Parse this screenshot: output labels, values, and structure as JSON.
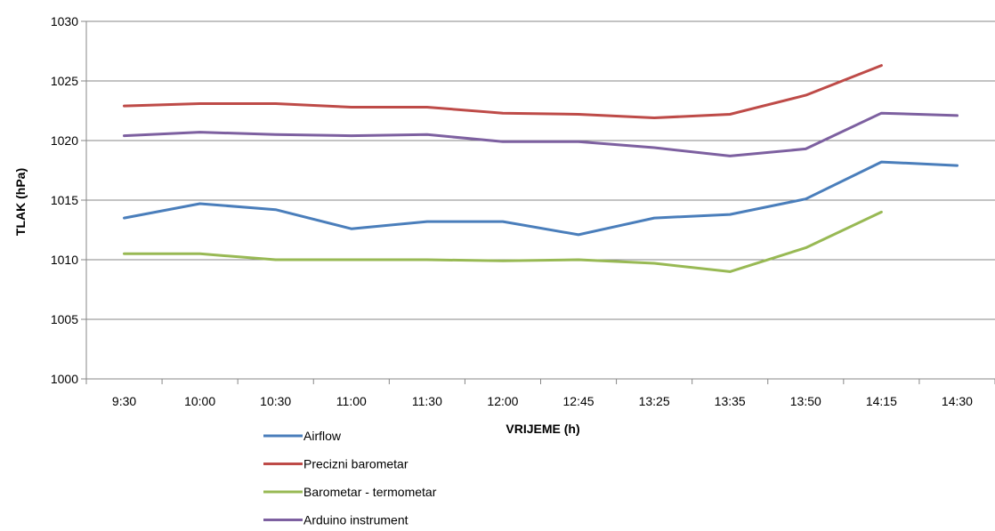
{
  "chart_data": {
    "type": "line",
    "title": "",
    "xlabel": "VRIJEME (h)",
    "ylabel": "TLAK (hPa)",
    "ylim": [
      1000,
      1030
    ],
    "yticks": [
      1000,
      1005,
      1010,
      1015,
      1020,
      1025,
      1030
    ],
    "categories": [
      "9:30",
      "10:00",
      "10:30",
      "11:00",
      "11:30",
      "12:00",
      "12:45",
      "13:25",
      "13:35",
      "13:50",
      "14:15",
      "14:30"
    ],
    "grid": "horizontal",
    "legend_position": "bottom-left",
    "series": [
      {
        "name": "Airflow",
        "color": "#4a7ebb",
        "values": [
          1013.5,
          1014.7,
          1014.2,
          1012.6,
          1013.2,
          1013.2,
          1012.1,
          1013.5,
          1013.8,
          1015.1,
          1018.2,
          1017.9
        ]
      },
      {
        "name": "Precizni barometar",
        "color": "#be4b48",
        "values": [
          1022.9,
          1023.1,
          1023.1,
          1022.8,
          1022.8,
          1022.3,
          1022.2,
          1021.9,
          1022.2,
          1023.8,
          1026.3,
          null
        ]
      },
      {
        "name": "Barometar - termometar",
        "color": "#98b954",
        "values": [
          1010.5,
          1010.5,
          1010.0,
          1010.0,
          1010.0,
          1009.9,
          1010.0,
          1009.7,
          1009.0,
          1011.0,
          1014.0,
          null
        ]
      },
      {
        "name": "Arduino instrument",
        "color": "#7d60a0",
        "values": [
          1020.4,
          1020.7,
          1020.5,
          1020.4,
          1020.5,
          1019.9,
          1019.9,
          1019.4,
          1018.7,
          1019.3,
          1022.3,
          1022.1
        ]
      }
    ]
  }
}
